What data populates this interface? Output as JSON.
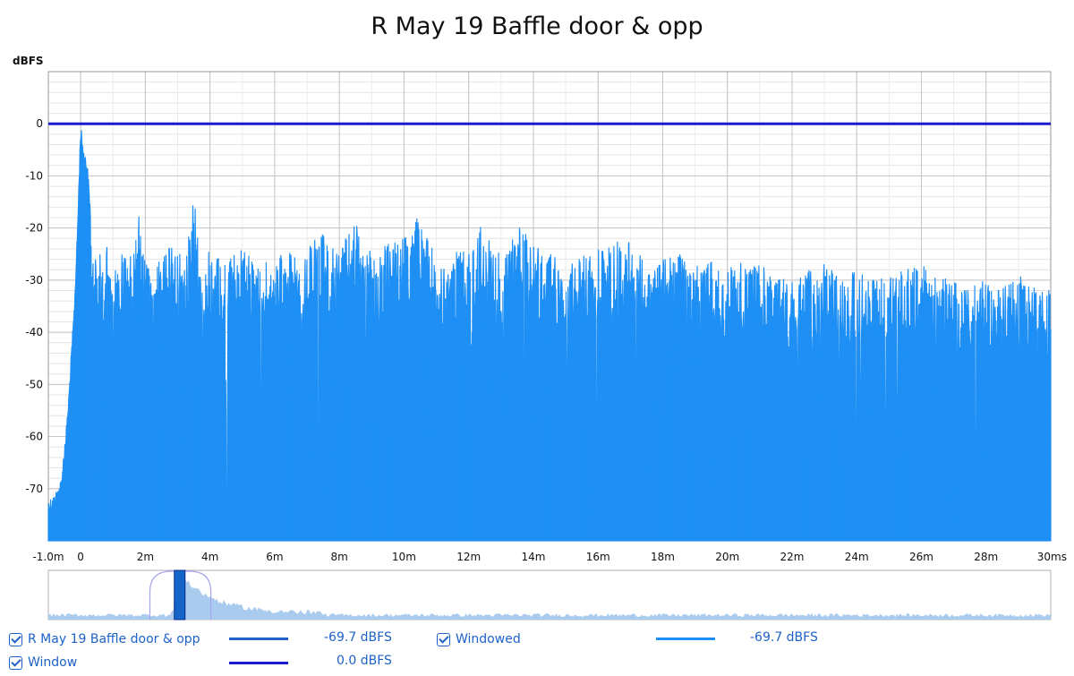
{
  "chart_data": {
    "type": "line",
    "title": "R May 19 Baffle door & opp",
    "ylabel": "dBFS",
    "xlabel": "",
    "x_unit": "ms",
    "xlim": [
      -1.0,
      30.0
    ],
    "ylim": [
      -80,
      10
    ],
    "x_ticks": [
      {
        "value": -1,
        "label": "-1.0m"
      },
      {
        "value": 0,
        "label": "0"
      },
      {
        "value": 2,
        "label": "2m"
      },
      {
        "value": 4,
        "label": "4m"
      },
      {
        "value": 6,
        "label": "6m"
      },
      {
        "value": 8,
        "label": "8m"
      },
      {
        "value": 10,
        "label": "10m"
      },
      {
        "value": 12,
        "label": "12m"
      },
      {
        "value": 14,
        "label": "14m"
      },
      {
        "value": 16,
        "label": "16m"
      },
      {
        "value": 18,
        "label": "18m"
      },
      {
        "value": 20,
        "label": "20m"
      },
      {
        "value": 22,
        "label": "22m"
      },
      {
        "value": 24,
        "label": "24m"
      },
      {
        "value": 26,
        "label": "26m"
      },
      {
        "value": 28,
        "label": "28m"
      },
      {
        "value": 30,
        "label": "30ms"
      }
    ],
    "y_ticks": [
      0,
      -10,
      -20,
      -30,
      -40,
      -50,
      -60,
      -70
    ],
    "grid": true,
    "series": [
      {
        "name": "Windowed",
        "color": "#1e8ff5",
        "envelope": [
          [
            -1.0,
            -72
          ],
          [
            -0.8,
            -71
          ],
          [
            -0.6,
            -68
          ],
          [
            -0.4,
            -55
          ],
          [
            -0.3,
            -45
          ],
          [
            -0.2,
            -35
          ],
          [
            -0.1,
            -20
          ],
          [
            0.0,
            0
          ],
          [
            0.1,
            -5
          ],
          [
            0.2,
            -7
          ],
          [
            0.4,
            -24
          ],
          [
            0.6,
            -25
          ],
          [
            0.8,
            -23
          ],
          [
            1.0,
            -28
          ],
          [
            1.3,
            -24
          ],
          [
            1.6,
            -25
          ],
          [
            1.8,
            -17
          ],
          [
            2.0,
            -27
          ],
          [
            2.3,
            -26
          ],
          [
            2.6,
            -25
          ],
          [
            2.9,
            -22
          ],
          [
            3.2,
            -27
          ],
          [
            3.5,
            -12
          ],
          [
            3.7,
            -28
          ],
          [
            4.0,
            -24
          ],
          [
            4.3,
            -26
          ],
          [
            4.6,
            -25
          ],
          [
            5.0,
            -24
          ],
          [
            5.5,
            -27
          ],
          [
            6.0,
            -26
          ],
          [
            6.5,
            -24
          ],
          [
            6.9,
            -26
          ],
          [
            7.2,
            -22
          ],
          [
            7.5,
            -21
          ],
          [
            8.0,
            -24
          ],
          [
            8.5,
            -19
          ],
          [
            9.0,
            -25
          ],
          [
            9.5,
            -23
          ],
          [
            10.0,
            -22
          ],
          [
            10.4,
            -18
          ],
          [
            10.8,
            -23
          ],
          [
            11.2,
            -27
          ],
          [
            11.6,
            -24
          ],
          [
            12.0,
            -25
          ],
          [
            12.4,
            -19
          ],
          [
            12.8,
            -25
          ],
          [
            13.2,
            -24
          ],
          [
            13.6,
            -19
          ],
          [
            14.0,
            -23
          ],
          [
            14.5,
            -24
          ],
          [
            15.0,
            -26
          ],
          [
            15.5,
            -25
          ],
          [
            16.0,
            -24
          ],
          [
            16.5,
            -23
          ],
          [
            17.0,
            -21
          ],
          [
            17.5,
            -28
          ],
          [
            18.0,
            -26
          ],
          [
            18.5,
            -25
          ],
          [
            19.0,
            -27
          ],
          [
            19.5,
            -26
          ],
          [
            20.0,
            -28
          ],
          [
            20.5,
            -26
          ],
          [
            21.0,
            -27
          ],
          [
            21.5,
            -29
          ],
          [
            22.0,
            -30
          ],
          [
            22.5,
            -28
          ],
          [
            23.0,
            -27
          ],
          [
            23.5,
            -29
          ],
          [
            24.0,
            -28
          ],
          [
            24.5,
            -30
          ],
          [
            25.0,
            -29
          ],
          [
            25.5,
            -28
          ],
          [
            26.0,
            -27
          ],
          [
            26.5,
            -29
          ],
          [
            27.0,
            -30
          ],
          [
            27.5,
            -31
          ],
          [
            28.0,
            -30
          ],
          [
            28.5,
            -31
          ],
          [
            29.0,
            -29
          ],
          [
            29.5,
            -31
          ],
          [
            30.0,
            -32
          ]
        ]
      },
      {
        "name": "Window",
        "color": "#1c1ccc",
        "constant": 0.0
      }
    ]
  },
  "overview": {
    "window_start": 7.0,
    "window_end": 16.0,
    "view_start": 10.6,
    "view_end": 10.95
  },
  "legend": {
    "items": [
      {
        "label": "R May 19 Baffle door & opp",
        "value": "-69.7 dBFS",
        "line_color": "#1e62c8",
        "checked": true
      },
      {
        "label": "Windowed",
        "value": "-69.7 dBFS",
        "line_color": "#1e8ff5",
        "checked": true
      },
      {
        "label": "Window",
        "value": "0.0 dBFS",
        "line_color": "#1c1ccc",
        "checked": true
      }
    ]
  }
}
